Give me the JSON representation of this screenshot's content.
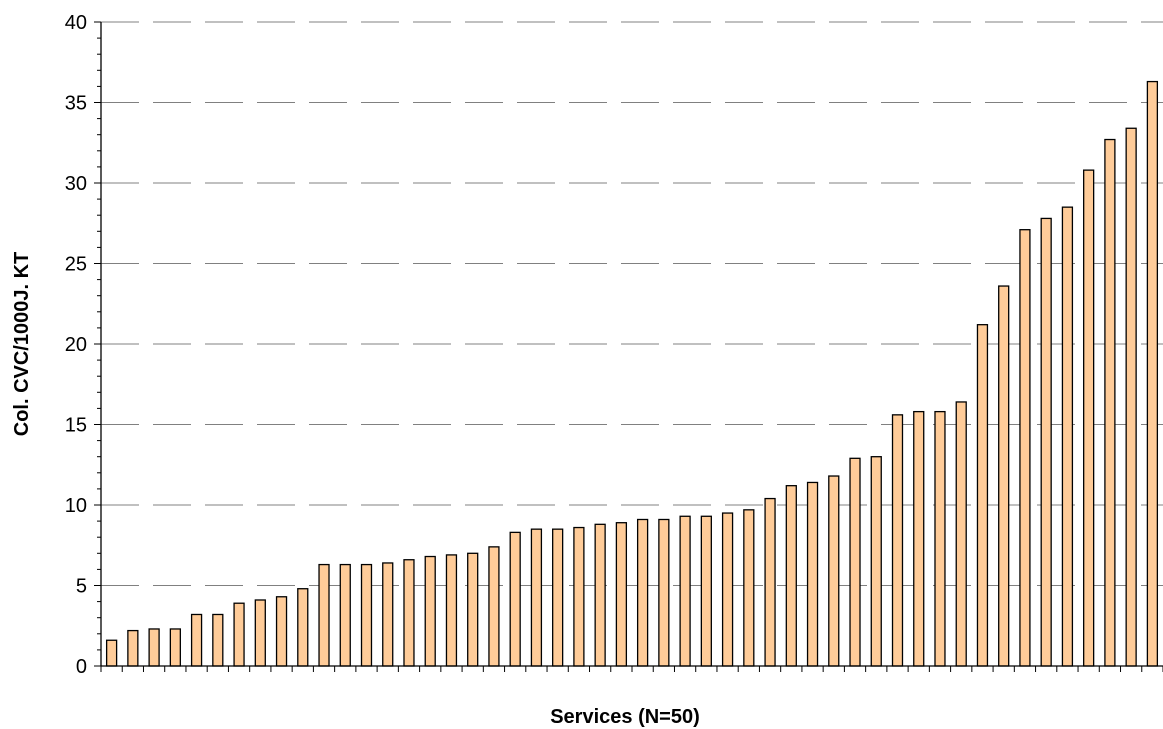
{
  "chart_data": {
    "type": "bar",
    "title": "",
    "xlabel": "Services (N=50)",
    "ylabel": "Col. CVC/1000J. KT",
    "ylim": [
      0,
      40
    ],
    "yticks": [
      0,
      5,
      10,
      15,
      20,
      25,
      30,
      35,
      40
    ],
    "ytick_labels": [
      "0",
      "5",
      "10",
      "15",
      "20",
      "25",
      "30",
      "35",
      "40"
    ],
    "grid": true,
    "grid_style": "dashed horizontal at major y ticks",
    "legend": "none",
    "colors": {
      "bar_fill": "#FFCC99",
      "bar_stroke": "#000000",
      "grid": "#808080",
      "axis": "#000000"
    },
    "values": [
      1.6,
      2.2,
      2.3,
      2.3,
      3.2,
      3.2,
      3.9,
      4.1,
      4.3,
      4.8,
      6.3,
      6.3,
      6.3,
      6.4,
      6.6,
      6.8,
      6.9,
      7.0,
      7.4,
      8.3,
      8.5,
      8.5,
      8.6,
      8.8,
      8.9,
      9.1,
      9.1,
      9.3,
      9.3,
      9.5,
      9.7,
      10.4,
      11.2,
      11.4,
      11.8,
      12.9,
      13.0,
      15.6,
      15.8,
      15.8,
      16.4,
      21.2,
      23.6,
      27.1,
      27.8,
      28.5,
      30.8,
      32.7,
      33.4,
      36.3
    ]
  }
}
